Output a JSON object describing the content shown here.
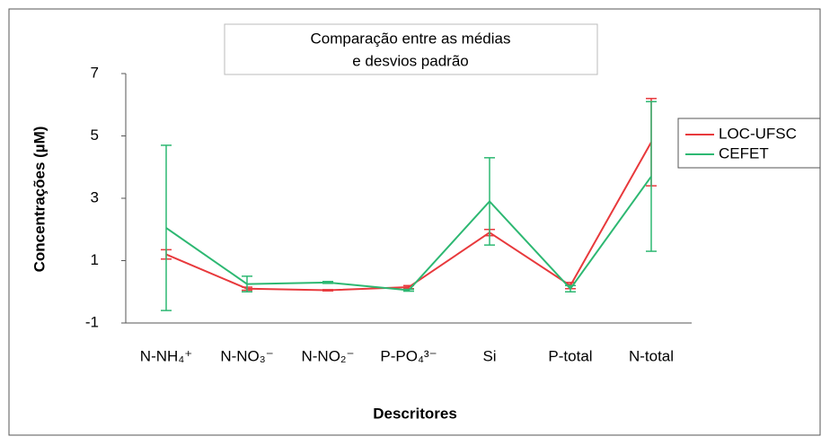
{
  "chart_data": {
    "type": "line",
    "title": "Comparação entre as médias e desvios padrão",
    "xlabel": "Descritores",
    "ylabel": "Concentrações  (µM)",
    "categories": [
      "N-NH₄⁺",
      "N-NO₃⁻",
      "N-NO₂⁻",
      "P-PO₄³⁻",
      "Si",
      "P-total",
      "N-total"
    ],
    "series": [
      {
        "name": "LOC-UFSC",
        "color": "#e8393c",
        "values": [
          1.2,
          0.1,
          0.05,
          0.15,
          1.9,
          0.2,
          4.8
        ],
        "errors": [
          0.15,
          0.05,
          0.02,
          0.05,
          0.1,
          0.1,
          1.4
        ]
      },
      {
        "name": "CEFET",
        "color": "#2db872",
        "values": [
          2.05,
          0.25,
          0.3,
          0.05,
          2.9,
          0.1,
          3.7
        ],
        "errors": [
          2.65,
          0.25,
          0.03,
          0.03,
          1.4,
          0.1,
          2.4
        ]
      }
    ],
    "ylim": [
      -1,
      7
    ],
    "yticks": [
      -1,
      1,
      3,
      5,
      7
    ],
    "grid": false,
    "legend": "right"
  }
}
